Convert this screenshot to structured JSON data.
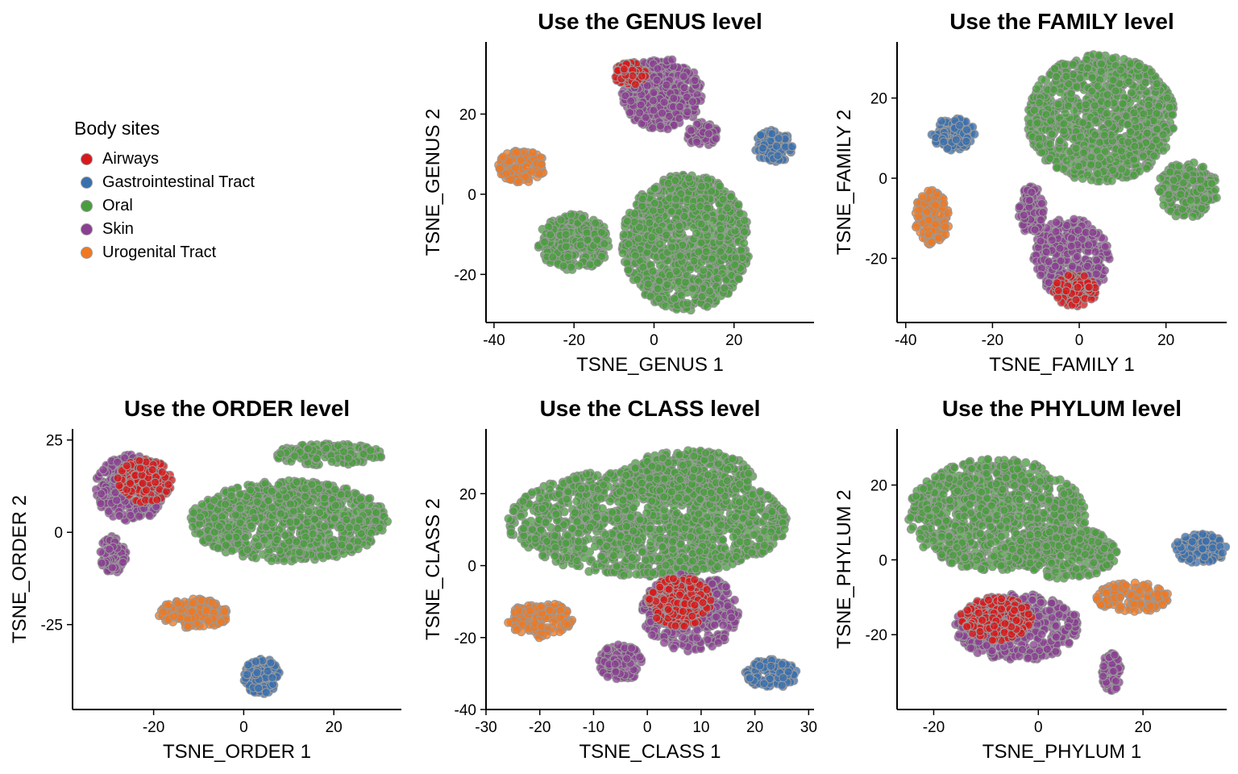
{
  "legend": {
    "title": "Body sites",
    "items": [
      {
        "label": "Airways",
        "color": "#d7191c"
      },
      {
        "label": "Gastrointestinal Tract",
        "color": "#3a6fae"
      },
      {
        "label": "Oral",
        "color": "#4a9d3f"
      },
      {
        "label": "Skin",
        "color": "#8a3f92"
      },
      {
        "label": "Urogenital Tract",
        "color": "#f07820"
      }
    ]
  },
  "chart_data": [
    {
      "type": "scatter",
      "title": "Use the GENUS level",
      "xlabel": "TSNE_GENUS 1",
      "ylabel": "TSNE_GENUS 2",
      "xlim": [
        -42,
        40
      ],
      "ylim": [
        -32,
        38
      ],
      "xticks": [
        -40,
        -20,
        0,
        20
      ],
      "yticks": [
        -20,
        0,
        20
      ],
      "clusters": [
        {
          "series": "Urogenital Tract",
          "cx": -33,
          "cy": 7,
          "rx": 6,
          "ry": 4
        },
        {
          "series": "Skin",
          "cx": 2,
          "cy": 25,
          "rx": 10,
          "ry": 9
        },
        {
          "series": "Airways",
          "cx": -6,
          "cy": 30,
          "rx": 4,
          "ry": 3
        },
        {
          "series": "Skin",
          "cx": 12,
          "cy": 15,
          "rx": 4,
          "ry": 3
        },
        {
          "series": "Gastrointestinal Tract",
          "cx": 30,
          "cy": 12,
          "rx": 5,
          "ry": 4
        },
        {
          "series": "Oral",
          "cx": 8,
          "cy": -12,
          "rx": 16,
          "ry": 17
        },
        {
          "series": "Oral",
          "cx": -20,
          "cy": -12,
          "rx": 9,
          "ry": 7
        }
      ]
    },
    {
      "type": "scatter",
      "title": "Use the FAMILY level",
      "xlabel": "TSNE_FAMILY 1",
      "ylabel": "TSNE_FAMILY 2",
      "xlim": [
        -42,
        34
      ],
      "ylim": [
        -36,
        34
      ],
      "xticks": [
        -40,
        -20,
        0,
        20
      ],
      "yticks": [
        -20,
        0,
        20
      ],
      "clusters": [
        {
          "series": "Gastrointestinal Tract",
          "cx": -29,
          "cy": 11,
          "rx": 5,
          "ry": 4
        },
        {
          "series": "Urogenital Tract",
          "cx": -34,
          "cy": -10,
          "rx": 4,
          "ry": 7
        },
        {
          "series": "Oral",
          "cx": 5,
          "cy": 15,
          "rx": 17,
          "ry": 16
        },
        {
          "series": "Oral",
          "cx": 25,
          "cy": -3,
          "rx": 7,
          "ry": 7
        },
        {
          "series": "Skin",
          "cx": -2,
          "cy": -20,
          "rx": 9,
          "ry": 10
        },
        {
          "series": "Skin",
          "cx": -11,
          "cy": -8,
          "rx": 3,
          "ry": 6
        },
        {
          "series": "Airways",
          "cx": -1,
          "cy": -28,
          "rx": 5,
          "ry": 4
        }
      ]
    },
    {
      "type": "scatter",
      "title": "Use the ORDER level",
      "xlabel": "TSNE_ORDER 1",
      "ylabel": "TSNE_ORDER 2",
      "xlim": [
        -38,
        35
      ],
      "ylim": [
        -48,
        28
      ],
      "xticks": [
        -20,
        0,
        20
      ],
      "yticks": [
        -25,
        0,
        25
      ],
      "clusters": [
        {
          "series": "Skin",
          "cx": -25,
          "cy": 12,
          "rx": 8,
          "ry": 9
        },
        {
          "series": "Airways",
          "cx": -22,
          "cy": 14,
          "rx": 6,
          "ry": 6
        },
        {
          "series": "Skin",
          "cx": -29,
          "cy": -6,
          "rx": 3,
          "ry": 5
        },
        {
          "series": "Oral",
          "cx": 10,
          "cy": 3,
          "rx": 22,
          "ry": 11
        },
        {
          "series": "Oral",
          "cx": 19,
          "cy": 21,
          "rx": 12,
          "ry": 3
        },
        {
          "series": "Urogenital Tract",
          "cx": -11,
          "cy": -22,
          "rx": 8,
          "ry": 4
        },
        {
          "series": "Gastrointestinal Tract",
          "cx": 4,
          "cy": -39,
          "rx": 4,
          "ry": 5
        }
      ]
    },
    {
      "type": "scatter",
      "title": "Use the CLASS level",
      "xlabel": "TSNE_CLASS 1",
      "ylabel": "TSNE_CLASS 2",
      "xlim": [
        -30,
        31
      ],
      "ylim": [
        -40,
        38
      ],
      "xticks": [
        -30,
        -20,
        -10,
        0,
        10,
        20,
        30
      ],
      "yticks": [
        -40,
        -20,
        0,
        20
      ],
      "clusters": [
        {
          "series": "Oral",
          "cx": 0,
          "cy": 12,
          "rx": 26,
          "ry": 15
        },
        {
          "series": "Oral",
          "cx": 8,
          "cy": 25,
          "rx": 12,
          "ry": 7
        },
        {
          "series": "Urogenital Tract",
          "cx": -20,
          "cy": -15,
          "rx": 6,
          "ry": 5
        },
        {
          "series": "Skin",
          "cx": 8,
          "cy": -13,
          "rx": 9,
          "ry": 11
        },
        {
          "series": "Airways",
          "cx": 6,
          "cy": -10,
          "rx": 6,
          "ry": 7
        },
        {
          "series": "Skin",
          "cx": -5,
          "cy": -27,
          "rx": 4,
          "ry": 5
        },
        {
          "series": "Gastrointestinal Tract",
          "cx": 23,
          "cy": -30,
          "rx": 5,
          "ry": 4
        }
      ]
    },
    {
      "type": "scatter",
      "title": "Use the PHYLUM level",
      "xlabel": "TSNE_PHYLUM 1",
      "ylabel": "TSNE_PHYLUM 2",
      "xlim": [
        -27,
        36
      ],
      "ylim": [
        -40,
        35
      ],
      "xticks": [
        -20,
        0,
        20
      ],
      "yticks": [
        -20,
        0,
        20
      ],
      "clusters": [
        {
          "series": "Oral",
          "cx": -8,
          "cy": 12,
          "rx": 17,
          "ry": 15
        },
        {
          "series": "Oral",
          "cx": 5,
          "cy": 2,
          "rx": 10,
          "ry": 7
        },
        {
          "series": "Skin",
          "cx": -4,
          "cy": -18,
          "rx": 12,
          "ry": 9
        },
        {
          "series": "Airways",
          "cx": -8,
          "cy": -16,
          "rx": 7,
          "ry": 6
        },
        {
          "series": "Skin",
          "cx": 14,
          "cy": -30,
          "rx": 2,
          "ry": 5
        },
        {
          "series": "Urogenital Tract",
          "cx": 18,
          "cy": -10,
          "rx": 7,
          "ry": 4
        },
        {
          "series": "Gastrointestinal Tract",
          "cx": 31,
          "cy": 3,
          "rx": 5,
          "ry": 4
        }
      ]
    }
  ]
}
